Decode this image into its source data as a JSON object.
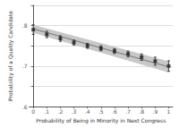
{
  "chart_data": {
    "type": "scatter",
    "xlabel": "Probability of Being in Minority in Next Congress",
    "ylabel": "Probability of a Quality Candidate",
    "series": [
      {
        "type": "scatter",
        "marker": "square",
        "color": "#222222",
        "x": [
          0.0,
          0.1,
          0.2,
          0.3,
          0.4,
          0.5,
          0.6,
          0.7,
          0.8,
          0.9,
          1.0
        ],
        "values": [
          0.79,
          0.778,
          0.768,
          0.758,
          0.75,
          0.744,
          0.737,
          0.73,
          0.722,
          0.712,
          0.7
        ],
        "error_low": [
          0.012,
          0.008,
          0.007,
          0.006,
          0.006,
          0.006,
          0.006,
          0.007,
          0.008,
          0.01,
          0.013
        ],
        "error_high": [
          0.012,
          0.008,
          0.007,
          0.006,
          0.006,
          0.006,
          0.006,
          0.007,
          0.008,
          0.01,
          0.013
        ]
      },
      {
        "type": "line",
        "color": "#777777",
        "ci_color": "#c8c8c8",
        "x": [
          0.0,
          1.0
        ],
        "values": [
          0.792,
          0.698
        ],
        "ci_lower": [
          0.782,
          0.684
        ],
        "ci_upper": [
          0.802,
          0.712
        ]
      }
    ],
    "xlim": [
      -0.03,
      1.03
    ],
    "ylim": [
      0.6,
      0.85
    ],
    "xticks": [
      0,
      {
        "value": 0.1,
        "label": ".1"
      },
      {
        "value": 0.2,
        "label": ".2"
      },
      {
        "value": 0.3,
        "label": ".3"
      },
      {
        "value": 0.4,
        "label": ".4"
      },
      {
        "value": 0.5,
        "label": ".5"
      },
      {
        "value": 0.6,
        "label": ".6"
      },
      {
        "value": 0.7,
        "label": ".7"
      },
      {
        "value": 0.8,
        "label": ".8"
      },
      {
        "value": 0.9,
        "label": ".9"
      },
      1
    ],
    "yticks": [
      {
        "value": 0.6,
        "label": ".6"
      },
      {
        "value": 0.65,
        "label": ""
      },
      {
        "value": 0.7,
        "label": ".7"
      },
      {
        "value": 0.75,
        "label": ""
      },
      {
        "value": 0.8,
        "label": ".8"
      },
      {
        "value": 0.85,
        "label": ""
      }
    ],
    "grid": "y"
  }
}
